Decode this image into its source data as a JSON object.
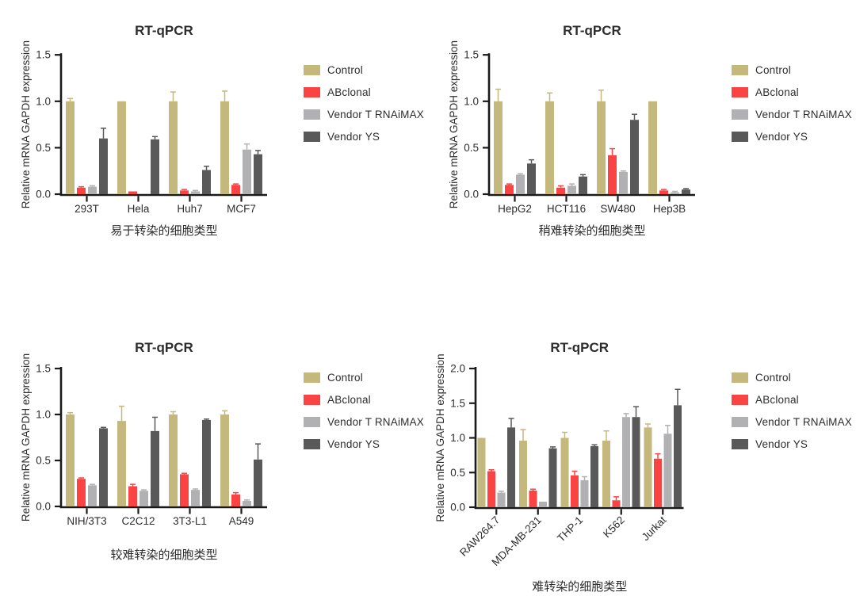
{
  "figure": {
    "background": "#ffffff",
    "panel_titles": [
      "RT-qPCR",
      "RT-qPCR",
      "RT-qPCR",
      "RT-qPCR"
    ]
  },
  "colors": {
    "control": "#c5b87c",
    "abclonal": "#fa4343",
    "vendor_t_rnaimax": "#b1b1b3",
    "vendor_ys": "#595959",
    "axis": "#1a1a1a",
    "text": "#2d2d2d"
  },
  "legend": {
    "position": "right",
    "items": [
      {
        "label": "Control",
        "color": "#c5b87c"
      },
      {
        "label": "ABclonal",
        "color": "#fa4343"
      },
      {
        "label": "Vendor T RNAiMAX",
        "color": "#b1b1b3"
      },
      {
        "label": "Vendor YS",
        "color": "#595959"
      }
    ]
  },
  "chart_data": [
    {
      "type": "bar",
      "title": "RT-qPCR",
      "xlabel": "易于转染的细胞类型",
      "ylabel": "Relative mRNA GAPDH expression",
      "ylim": [
        0,
        1.5
      ],
      "yticks": [
        0,
        0.5,
        1.0,
        1.5
      ],
      "grid": false,
      "legend_position": "right",
      "categories": [
        "293T",
        "Hela",
        "Huh7",
        "MCF7"
      ],
      "series": [
        {
          "name": "Control",
          "color": "#c5b87c",
          "values": [
            1.0,
            1.0,
            1.0,
            1.0
          ],
          "errors": [
            0.03,
            0.0,
            0.1,
            0.11
          ]
        },
        {
          "name": "ABclonal",
          "color": "#fa4343",
          "values": [
            0.07,
            0.03,
            0.04,
            0.1
          ],
          "errors": [
            0.01,
            0.0,
            0.01,
            0.01
          ]
        },
        {
          "name": "Vendor T RNAiMAX",
          "color": "#b1b1b3",
          "values": [
            0.08,
            0.0,
            0.03,
            0.48
          ],
          "errors": [
            0.01,
            0.0,
            0.01,
            0.06
          ]
        },
        {
          "name": "Vendor YS",
          "color": "#595959",
          "values": [
            0.6,
            0.59,
            0.26,
            0.43
          ],
          "errors": [
            0.11,
            0.03,
            0.04,
            0.04
          ]
        }
      ]
    },
    {
      "type": "bar",
      "title": "RT-qPCR",
      "xlabel": "稍难转染的细胞类型",
      "ylabel": "Relative mRNA GAPDH expression",
      "ylim": [
        0,
        1.5
      ],
      "yticks": [
        0,
        0.5,
        1.0,
        1.5
      ],
      "grid": false,
      "legend_position": "right",
      "categories": [
        "HepG2",
        "HCT116",
        "SW480",
        "Hep3B"
      ],
      "series": [
        {
          "name": "Control",
          "color": "#c5b87c",
          "values": [
            1.0,
            1.0,
            1.0,
            1.0
          ],
          "errors": [
            0.13,
            0.09,
            0.12,
            0.0
          ]
        },
        {
          "name": "ABclonal",
          "color": "#fa4343",
          "values": [
            0.1,
            0.07,
            0.42,
            0.04
          ],
          "errors": [
            0.01,
            0.02,
            0.07,
            0.01
          ]
        },
        {
          "name": "Vendor T RNAiMAX",
          "color": "#b1b1b3",
          "values": [
            0.21,
            0.09,
            0.24,
            0.02
          ],
          "errors": [
            0.01,
            0.02,
            0.01,
            0.01
          ]
        },
        {
          "name": "Vendor YS",
          "color": "#595959",
          "values": [
            0.33,
            0.19,
            0.8,
            0.05
          ],
          "errors": [
            0.04,
            0.02,
            0.06,
            0.01
          ]
        }
      ]
    },
    {
      "type": "bar",
      "title": "RT-qPCR",
      "xlabel": "较难转染的细胞类型",
      "ylabel": "Relative mRNA GAPDH expression",
      "ylim": [
        0,
        1.5
      ],
      "yticks": [
        0,
        0.5,
        1.0,
        1.5
      ],
      "grid": false,
      "legend_position": "right",
      "categories": [
        "NIH/3T3",
        "C2C12",
        "3T3-L1",
        "A549"
      ],
      "series": [
        {
          "name": "Control",
          "color": "#c5b87c",
          "values": [
            1.0,
            0.93,
            1.0,
            1.0
          ],
          "errors": [
            0.02,
            0.16,
            0.03,
            0.04
          ]
        },
        {
          "name": "ABclonal",
          "color": "#fa4343",
          "values": [
            0.3,
            0.22,
            0.35,
            0.13
          ],
          "errors": [
            0.01,
            0.02,
            0.01,
            0.02
          ]
        },
        {
          "name": "Vendor T RNAiMAX",
          "color": "#b1b1b3",
          "values": [
            0.23,
            0.17,
            0.18,
            0.06
          ],
          "errors": [
            0.01,
            0.01,
            0.01,
            0.01
          ]
        },
        {
          "name": "Vendor YS",
          "color": "#595959",
          "values": [
            0.85,
            0.82,
            0.94,
            0.51
          ],
          "errors": [
            0.01,
            0.15,
            0.01,
            0.17
          ]
        }
      ]
    },
    {
      "type": "bar",
      "title": "RT-qPCR",
      "xlabel": "难转染的细胞类型",
      "ylabel": "Relative mRNA GAPDH expression",
      "ylim": [
        0,
        2.0
      ],
      "yticks": [
        0,
        0.5,
        1.0,
        1.5,
        2.0
      ],
      "grid": false,
      "legend_position": "right",
      "x_tick_rotation": -45,
      "categories": [
        "RAW264.7",
        "MDA-MB-231",
        "THP-1",
        "K562",
        "Jurkat"
      ],
      "series": [
        {
          "name": "Control",
          "color": "#c5b87c",
          "values": [
            1.0,
            0.96,
            1.0,
            0.96,
            1.15
          ],
          "errors": [
            0.0,
            0.16,
            0.08,
            0.14,
            0.05
          ]
        },
        {
          "name": "ABclonal",
          "color": "#fa4343",
          "values": [
            0.52,
            0.24,
            0.46,
            0.1,
            0.7
          ],
          "errors": [
            0.02,
            0.02,
            0.06,
            0.05,
            0.07
          ]
        },
        {
          "name": "Vendor T RNAiMAX",
          "color": "#b1b1b3",
          "values": [
            0.21,
            0.08,
            0.39,
            1.3,
            1.06
          ],
          "errors": [
            0.02,
            0.0,
            0.05,
            0.05,
            0.12
          ]
        },
        {
          "name": "Vendor YS",
          "color": "#595959",
          "values": [
            1.15,
            0.85,
            0.88,
            1.3,
            1.47
          ],
          "errors": [
            0.13,
            0.02,
            0.02,
            0.15,
            0.23
          ]
        }
      ]
    }
  ]
}
